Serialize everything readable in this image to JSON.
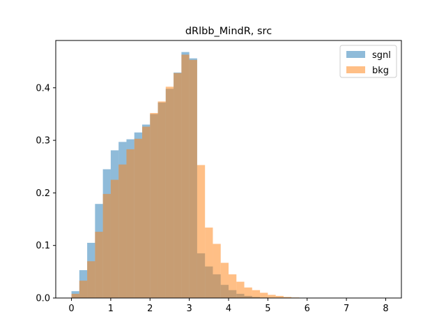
{
  "chart_data": {
    "type": "bar",
    "title": "dRlbb_MindR, src",
    "xlabel": "",
    "ylabel": "",
    "xlim": [
      -0.4,
      8.4
    ],
    "ylim": [
      0.0,
      0.49
    ],
    "xticks": [
      0,
      1,
      2,
      3,
      4,
      5,
      6,
      7,
      8
    ],
    "yticks": [
      0.0,
      0.1,
      0.2,
      0.3,
      0.4
    ],
    "ytick_labels": [
      "0.0",
      "0.1",
      "0.2",
      "0.3",
      "0.4"
    ],
    "legend_position": "top-right",
    "grid": false,
    "bin_edges": [
      0.0,
      0.2,
      0.4,
      0.6,
      0.8,
      1.0,
      1.2,
      1.4,
      1.6,
      1.8,
      2.0,
      2.2,
      2.4,
      2.6,
      2.8,
      3.0,
      3.2,
      3.4,
      3.6,
      3.8,
      4.0,
      4.2,
      4.4,
      4.6,
      4.8,
      5.0,
      5.2,
      5.4,
      5.6,
      5.8,
      6.0,
      6.2,
      6.4,
      6.6,
      6.8,
      7.0,
      7.2,
      7.4,
      7.6,
      7.8,
      8.0
    ],
    "series": [
      {
        "name": "sgnl",
        "color": "#1f77b4",
        "alpha": 0.5,
        "values": [
          0.013,
          0.053,
          0.105,
          0.179,
          0.245,
          0.281,
          0.297,
          0.302,
          0.315,
          0.33,
          0.35,
          0.372,
          0.398,
          0.429,
          0.468,
          0.456,
          0.085,
          0.06,
          0.045,
          0.025,
          0.015,
          0.008,
          0.004,
          0.002,
          0.001,
          0.0005,
          0.0002,
          0.0001,
          0.0,
          0.0,
          0.0,
          0.0,
          0.0,
          0.0,
          0.0,
          0.0,
          0.0,
          0.0,
          0.0,
          0.0
        ]
      },
      {
        "name": "bkg",
        "color": "#ff7f0e",
        "alpha": 0.5,
        "values": [
          0.008,
          0.033,
          0.07,
          0.126,
          0.198,
          0.225,
          0.254,
          0.283,
          0.303,
          0.326,
          0.352,
          0.374,
          0.402,
          0.428,
          0.463,
          0.453,
          0.253,
          0.134,
          0.103,
          0.067,
          0.045,
          0.031,
          0.02,
          0.015,
          0.01,
          0.006,
          0.004,
          0.002,
          0.001,
          0.0005,
          0.0003,
          0.0001,
          0.0,
          0.0,
          0.0,
          0.0,
          0.0,
          0.0,
          0.0,
          0.0
        ]
      }
    ]
  }
}
